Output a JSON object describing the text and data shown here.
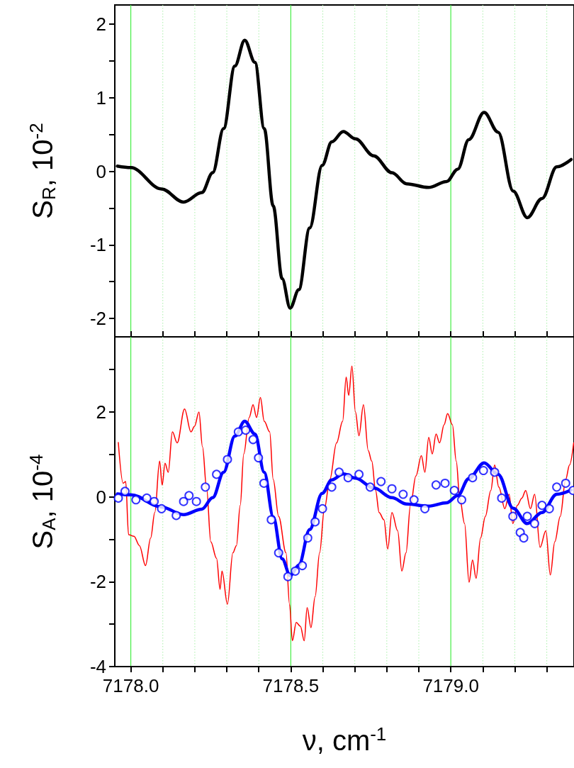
{
  "chart_data": [
    {
      "type": "line",
      "ylabel": "S$_{R}$, 10$^{-2}$",
      "xlim": [
        7177.95,
        7179.385
      ],
      "ylim": [
        -2.25,
        2.26
      ],
      "tick_labels": "y",
      "grid": "x",
      "xticks": [
        7178,
        {
          "value": 7178.1,
          "label": null
        },
        {
          "value": 7178.2,
          "label": null
        },
        {
          "value": 7178.3,
          "label": null
        },
        {
          "value": 7178.4,
          "label": null
        },
        7178.5,
        {
          "value": 7178.6,
          "label": null
        },
        {
          "value": 7178.7,
          "label": null
        },
        {
          "value": 7178.8,
          "label": null
        },
        {
          "value": 7178.9,
          "label": null
        },
        7179,
        {
          "value": 7179.1,
          "label": null
        },
        {
          "value": 7179.2,
          "label": null
        },
        {
          "value": 7179.3,
          "label": null
        }
      ],
      "yticks": [
        -2,
        {
          "value": -1.5,
          "label": null
        },
        -1,
        {
          "value": -0.5,
          "label": null
        },
        0,
        {
          "value": 0.5,
          "label": null
        },
        1,
        {
          "value": 1.5,
          "label": null
        },
        2
      ],
      "series": [
        {
          "type": "line",
          "color": "#000000",
          "marker": "none",
          "x": [
            7177.958,
            7178.0,
            7178.096,
            7178.165,
            7178.222,
            7178.256,
            7178.29,
            7178.325,
            7178.356,
            7178.388,
            7178.417,
            7178.445,
            7178.473,
            7178.498,
            7178.525,
            7178.559,
            7178.598,
            7178.628,
            7178.664,
            7178.702,
            7178.759,
            7178.816,
            7178.862,
            7178.93,
            7178.987,
            7179.022,
            7179.056,
            7179.104,
            7179.148,
            7179.195,
            7179.239,
            7179.285,
            7179.331,
            7179.376
          ],
          "values": [
            0.07,
            0.05,
            -0.24,
            -0.42,
            -0.29,
            -0.02,
            0.58,
            1.43,
            1.78,
            1.48,
            0.58,
            -0.47,
            -1.46,
            -1.86,
            -1.61,
            -0.77,
            0.08,
            0.4,
            0.54,
            0.44,
            0.21,
            -0.02,
            -0.17,
            -0.22,
            -0.14,
            0.03,
            0.43,
            0.8,
            0.53,
            -0.27,
            -0.63,
            -0.37,
            0.06,
            0.16
          ]
        }
      ]
    },
    {
      "type": "line",
      "ylabel": "S$_{A}$, 10$^{-4}$",
      "xlabel": "ν, cm$^{-1}$",
      "xlim": [
        7177.95,
        7179.385
      ],
      "ylim": [
        -4,
        3.77
      ],
      "grid": "x",
      "xticks": [
        {
          "value": 7178,
          "label": "7178.0"
        },
        {
          "value": 7178.1,
          "label": null
        },
        {
          "value": 7178.2,
          "label": null
        },
        {
          "value": 7178.3,
          "label": null
        },
        {
          "value": 7178.4,
          "label": null
        },
        {
          "value": 7178.5,
          "label": "7178.5"
        },
        {
          "value": 7178.6,
          "label": null
        },
        {
          "value": 7178.7,
          "label": null
        },
        {
          "value": 7178.8,
          "label": null
        },
        {
          "value": 7178.9,
          "label": null
        },
        {
          "value": 7179,
          "label": "7179.0"
        },
        {
          "value": 7179.1,
          "label": null
        },
        {
          "value": 7179.2,
          "label": null
        },
        {
          "value": 7179.3,
          "label": null
        }
      ],
      "yticks": [
        -4,
        {
          "value": -3,
          "label": null
        },
        -2,
        {
          "value": -1,
          "label": null
        },
        0,
        {
          "value": 1,
          "label": null
        },
        2,
        {
          "value": 3,
          "label": null
        }
      ],
      "series": [
        {
          "type": "line",
          "color": "#ff0000",
          "marker": "none",
          "x": [
            7177.961,
            7177.976,
            7177.984,
            7177.993,
            7178.01,
            7178.027,
            7178.046,
            7178.062,
            7178.075,
            7178.09,
            7178.098,
            7178.107,
            7178.117,
            7178.13,
            7178.145,
            7178.168,
            7178.188,
            7178.199,
            7178.213,
            7178.224,
            7178.237,
            7178.25,
            7178.268,
            7178.279,
            7178.285,
            7178.302,
            7178.319,
            7178.33,
            7178.342,
            7178.353,
            7178.37,
            7178.382,
            7178.393,
            7178.405,
            7178.417,
            7178.434,
            7178.445,
            7178.462,
            7178.485,
            7178.496,
            7178.505,
            7178.517,
            7178.53,
            7178.542,
            7178.551,
            7178.563,
            7178.576,
            7178.59,
            7178.605,
            7178.622,
            7178.643,
            7178.662,
            7178.673,
            7178.681,
            7178.691,
            7178.702,
            7178.713,
            7178.727,
            7178.742,
            7178.753,
            7178.765,
            7178.776,
            7178.791,
            7178.803,
            7178.816,
            7178.834,
            7178.847,
            7178.86,
            7178.874,
            7178.891,
            7178.908,
            7178.919,
            7178.931,
            7178.942,
            7178.954,
            7178.965,
            7178.979,
            7178.99,
            7179.005,
            7179.017,
            7179.028,
            7179.043,
            7179.057,
            7179.068,
            7179.079,
            7179.093,
            7179.108,
            7179.125,
            7179.137,
            7179.15,
            7179.169,
            7179.182,
            7179.194,
            7179.208,
            7179.222,
            7179.234,
            7179.249,
            7179.262,
            7179.279,
            7179.297,
            7179.311,
            7179.325,
            7179.342,
            7179.359,
            7179.371,
            7179.384
          ],
          "values": [
            1.28,
            0.32,
            0.36,
            -0.89,
            -0.93,
            -1.15,
            -1.62,
            -0.97,
            -0.37,
            0.84,
            0.28,
            0.79,
            0.58,
            1.53,
            1.27,
            2.07,
            1.53,
            1.66,
            2.0,
            1.18,
            0.19,
            -1.06,
            -1.45,
            -2.18,
            -1.75,
            -2.53,
            -1.32,
            -1.15,
            -0.2,
            1.01,
            1.87,
            2.17,
            1.87,
            2.34,
            1.78,
            1.53,
            0.41,
            -0.46,
            -1.32,
            -2.53,
            -3.39,
            -2.96,
            -3.05,
            -3.39,
            -2.61,
            -3.08,
            -2.35,
            -1.32,
            -0.28,
            0.41,
            1.27,
            1.78,
            2.82,
            2.39,
            3.08,
            2.0,
            1.44,
            2.17,
            1.09,
            0.84,
            0.15,
            -0.37,
            -0.54,
            -1.23,
            -0.37,
            -0.8,
            -1.75,
            -1.32,
            -0.2,
            0.49,
            0.97,
            0.58,
            1.4,
            1.01,
            1.48,
            1.27,
            1.7,
            1.96,
            1.7,
            0.84,
            -0.03,
            -0.63,
            -2.01,
            -1.49,
            -1.92,
            -0.97,
            -0.46,
            0.15,
            0.75,
            0.23,
            -0.28,
            0.06,
            -0.63,
            -0.2,
            -0.03,
            0.15,
            -0.28,
            0.06,
            -1.19,
            -0.8,
            -1.84,
            -1.06,
            -0.46,
            0.41,
            0.75,
            1.27
          ]
        },
        {
          "type": "scatter",
          "color": "#0000ff",
          "marker": "circle",
          "x": [
            7177.961,
            7177.982,
            7178.016,
            7178.05,
            7178.073,
            7178.096,
            7178.142,
            7178.165,
            7178.182,
            7178.205,
            7178.233,
            7178.268,
            7178.302,
            7178.336,
            7178.359,
            7178.382,
            7178.399,
            7178.416,
            7178.439,
            7178.462,
            7178.491,
            7178.514,
            7178.536,
            7178.553,
            7178.576,
            7178.599,
            7178.628,
            7178.651,
            7178.679,
            7178.713,
            7178.748,
            7178.782,
            7178.816,
            7178.851,
            7178.885,
            7178.919,
            7178.954,
            7178.982,
            7179.011,
            7179.034,
            7179.068,
            7179.102,
            7179.137,
            7179.159,
            7179.194,
            7179.217,
            7179.228,
            7179.239,
            7179.262,
            7179.285,
            7179.308,
            7179.331,
            7179.359,
            7179.382
          ],
          "values": [
            -0.03,
            0.13,
            -0.07,
            -0.03,
            -0.11,
            -0.28,
            -0.44,
            -0.11,
            0.03,
            -0.11,
            0.23,
            0.53,
            0.88,
            1.53,
            1.57,
            1.35,
            0.92,
            0.32,
            -0.54,
            -1.32,
            -1.88,
            -1.75,
            -1.62,
            -0.97,
            -0.59,
            -0.28,
            0.23,
            0.58,
            0.45,
            0.53,
            0.23,
            0.36,
            0.19,
            0.06,
            -0.07,
            -0.28,
            0.28,
            0.32,
            0.15,
            -0.07,
            0.45,
            0.62,
            0.58,
            -0.03,
            -0.46,
            -0.84,
            -0.97,
            -0.46,
            -0.63,
            -0.2,
            -0.28,
            0.23,
            0.32,
            0.15
          ]
        },
        {
          "type": "line",
          "color": "#0000ff",
          "marker": "none",
          "x": [
            7177.958,
            7178.0,
            7178.096,
            7178.165,
            7178.222,
            7178.256,
            7178.29,
            7178.325,
            7178.356,
            7178.388,
            7178.417,
            7178.445,
            7178.473,
            7178.498,
            7178.525,
            7178.559,
            7178.598,
            7178.628,
            7178.664,
            7178.702,
            7178.759,
            7178.816,
            7178.862,
            7178.93,
            7178.987,
            7179.022,
            7179.056,
            7179.104,
            7179.148,
            7179.195,
            7179.239,
            7179.285,
            7179.331,
            7179.376
          ],
          "values": [
            0.07,
            0.05,
            -0.24,
            -0.42,
            -0.29,
            -0.02,
            0.58,
            1.43,
            1.78,
            1.48,
            0.58,
            -0.47,
            -1.46,
            -1.86,
            -1.61,
            -0.77,
            0.08,
            0.4,
            0.54,
            0.44,
            0.21,
            -0.02,
            -0.17,
            -0.22,
            -0.14,
            0.03,
            0.43,
            0.8,
            0.53,
            -0.27,
            -0.63,
            -0.37,
            0.06,
            0.16
          ]
        }
      ]
    }
  ]
}
